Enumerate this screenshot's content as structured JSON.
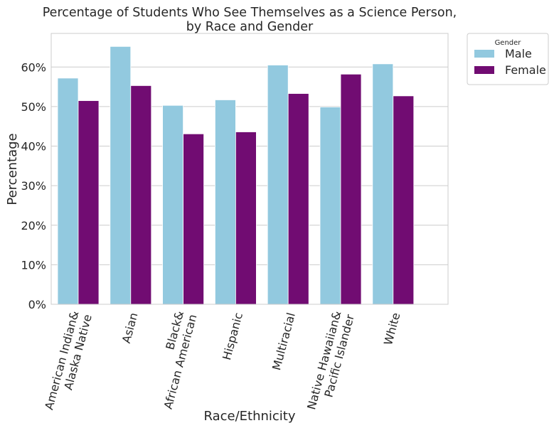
{
  "chart_data": {
    "type": "bar",
    "title": [
      "Percentage of Students Who See Themselves as a Science Person,",
      "by Race and Gender"
    ],
    "xlabel": "Race/Ethnicity",
    "ylabel": "Percentage",
    "categories": [
      [
        "American Indian&",
        "Alaska Native"
      ],
      [
        "Asian"
      ],
      [
        "Black&",
        "African American"
      ],
      [
        "Hispanic"
      ],
      [
        "Multiracial"
      ],
      [
        "Native Hawaiian&",
        "Pacific Islander"
      ],
      [
        "White"
      ]
    ],
    "series": [
      {
        "name": "Male",
        "color": "#92c9df",
        "values": [
          57.2,
          65.2,
          50.3,
          51.7,
          60.5,
          49.9,
          60.8
        ]
      },
      {
        "name": "Female",
        "color": "#710c72",
        "values": [
          51.5,
          55.3,
          43.1,
          43.6,
          53.3,
          58.2,
          52.7
        ]
      }
    ],
    "ylim": [
      0,
      68.5
    ],
    "yticks": [
      0,
      10,
      20,
      30,
      40,
      50,
      60
    ],
    "ytick_labels": [
      "0%",
      "10%",
      "20%",
      "30%",
      "40%",
      "50%",
      "60%"
    ],
    "grid": "y",
    "legend": {
      "title": "Gender",
      "placement": "outside-top-right"
    }
  }
}
